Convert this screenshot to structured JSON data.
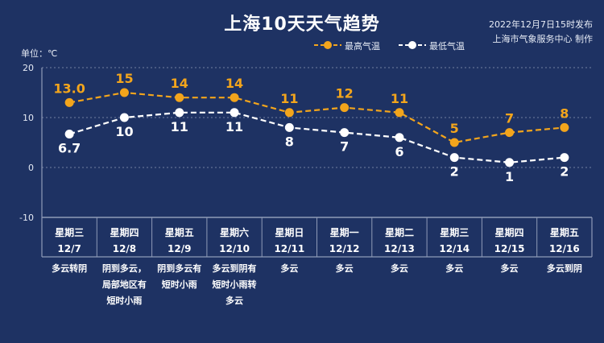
{
  "title": "上海10天天气趋势",
  "publish_time": "2022年12月7日15时发布",
  "maker": "上海市气象服务中心 制作",
  "unit_label": "单位：℃",
  "colors": {
    "background": "#1e3263",
    "high": "#f3a51c",
    "low": "#ffffff",
    "grid": "#8f9bb8"
  },
  "chart_data": {
    "type": "line",
    "ylim": [
      -10,
      20
    ],
    "yticks": [
      "-10",
      "0",
      "10",
      "20"
    ],
    "legend_position": "top-right",
    "days": [
      {
        "weekday": "星期三",
        "date": "12/7",
        "weather": [
          "多云转阴"
        ]
      },
      {
        "weekday": "星期四",
        "date": "12/8",
        "weather": [
          "阴到多云，",
          "局部地区有",
          "短时小雨"
        ]
      },
      {
        "weekday": "星期五",
        "date": "12/9",
        "weather": [
          "阴到多云有",
          "短时小雨"
        ]
      },
      {
        "weekday": "星期六",
        "date": "12/10",
        "weather": [
          "多云到阴有",
          "短时小雨转",
          "多云"
        ]
      },
      {
        "weekday": "星期日",
        "date": "12/11",
        "weather": [
          "多云"
        ]
      },
      {
        "weekday": "星期一",
        "date": "12/12",
        "weather": [
          "多云"
        ]
      },
      {
        "weekday": "星期二",
        "date": "12/13",
        "weather": [
          "多云"
        ]
      },
      {
        "weekday": "星期三",
        "date": "12/14",
        "weather": [
          "多云"
        ]
      },
      {
        "weekday": "星期四",
        "date": "12/15",
        "weather": [
          "多云"
        ]
      },
      {
        "weekday": "星期五",
        "date": "12/16",
        "weather": [
          "多云到阴"
        ]
      }
    ],
    "series": [
      {
        "name": "最高气温",
        "values": [
          13,
          15,
          14,
          14,
          11,
          12,
          11,
          5,
          7,
          8
        ],
        "labels": [
          "13.0",
          "15",
          "14",
          "14",
          "11",
          "12",
          "11",
          "5",
          "7",
          "8"
        ],
        "color": "#f3a51c"
      },
      {
        "name": "最低气温",
        "values": [
          6.7,
          10,
          11,
          11,
          8,
          7,
          6,
          2,
          1,
          2
        ],
        "labels": [
          "6.7",
          "10",
          "11",
          "11",
          "8",
          "7",
          "6",
          "2",
          "1",
          "2"
        ],
        "color": "#ffffff"
      }
    ]
  }
}
